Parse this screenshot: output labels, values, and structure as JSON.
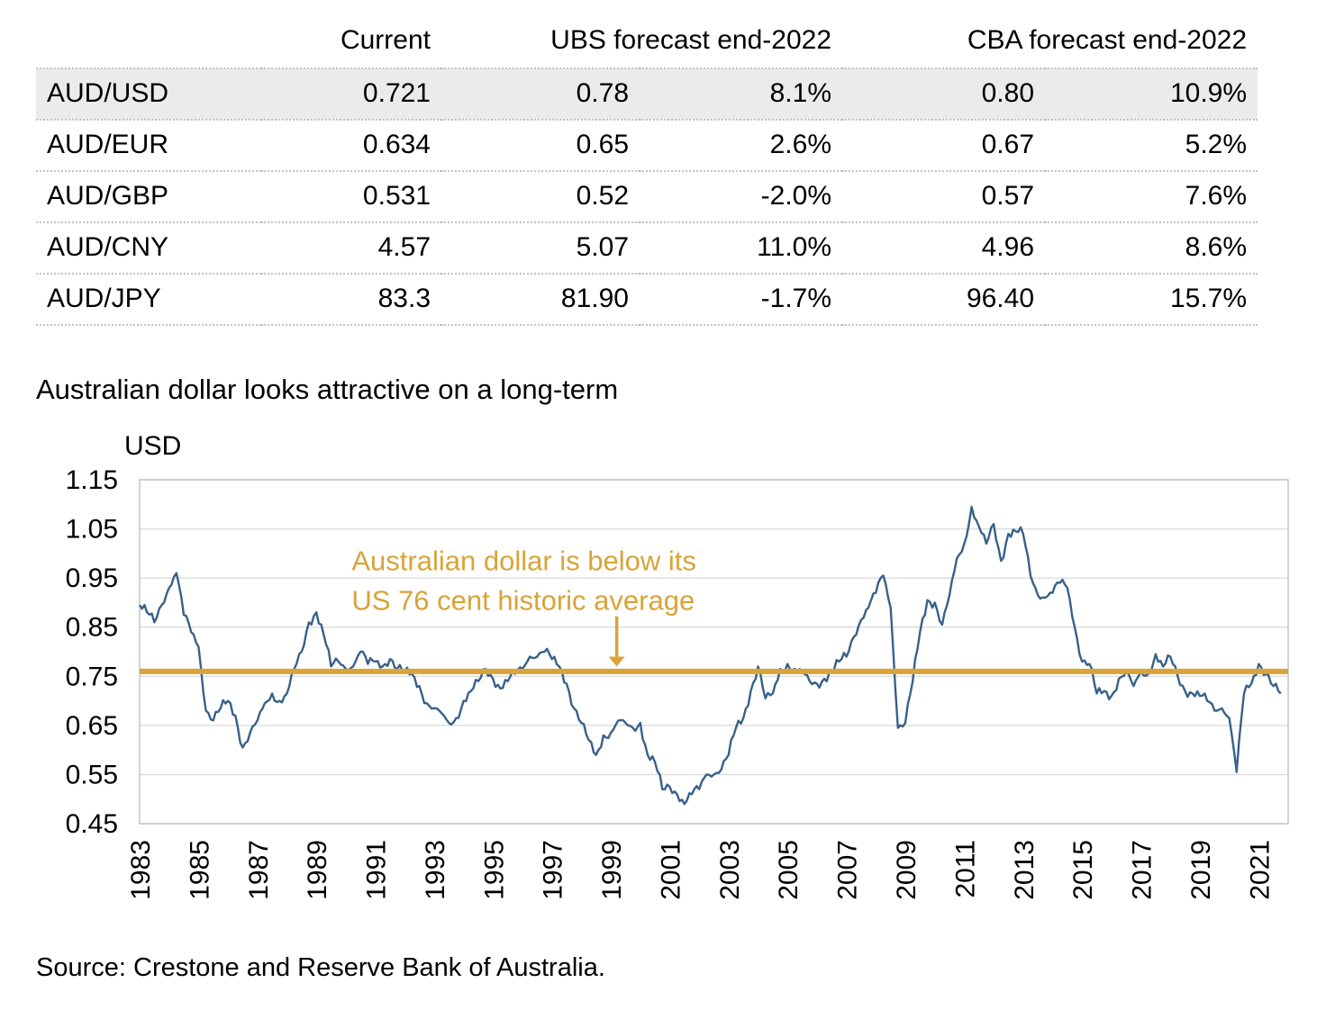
{
  "table": {
    "headers": [
      "",
      "Current",
      "UBS forecast end-2022",
      "CBA forecast end-2022"
    ],
    "rows": [
      {
        "pair": "AUD/USD",
        "current": "0.721",
        "ubs_forecast": "0.78",
        "ubs_change": "8.1%",
        "cba_forecast": "0.80",
        "cba_change": "10.9%",
        "highlight": true
      },
      {
        "pair": "AUD/EUR",
        "current": "0.634",
        "ubs_forecast": "0.65",
        "ubs_change": "2.6%",
        "cba_forecast": "0.67",
        "cba_change": "5.2%",
        "highlight": false
      },
      {
        "pair": "AUD/GBP",
        "current": "0.531",
        "ubs_forecast": "0.52",
        "ubs_change": "-2.0%",
        "cba_forecast": "0.57",
        "cba_change": "7.6%",
        "highlight": false
      },
      {
        "pair": "AUD/CNY",
        "current": "4.57",
        "ubs_forecast": "5.07",
        "ubs_change": "11.0%",
        "cba_forecast": "4.96",
        "cba_change": "8.6%",
        "highlight": false
      },
      {
        "pair": "AUD/JPY",
        "current": "83.3",
        "ubs_forecast": "81.90",
        "ubs_change": "-1.7%",
        "cba_forecast": "96.40",
        "cba_change": "15.7%",
        "highlight": false
      }
    ]
  },
  "section_title": "Australian dollar looks attractive on a long-term",
  "source": "Source: Crestone and Reserve Bank of Australia.",
  "chart_data": {
    "type": "line",
    "title": "Australian dollar looks attractive on a long-term",
    "ylabel": "USD",
    "xlim": [
      1983,
      2022
    ],
    "ylim": [
      0.45,
      1.15
    ],
    "y_ticks": [
      1.15,
      1.05,
      0.95,
      0.85,
      0.75,
      0.65,
      0.55,
      0.45
    ],
    "x_ticks": [
      1983,
      1985,
      1987,
      1989,
      1991,
      1993,
      1995,
      1997,
      1999,
      2001,
      2003,
      2005,
      2007,
      2009,
      2011,
      2013,
      2015,
      2017,
      2019,
      2021
    ],
    "grid": true,
    "grid_color": "#dcdcdc",
    "border_color": "#c8c8c8",
    "series": [
      {
        "name": "AUD/USD",
        "color": "#376189",
        "x_start": 1983,
        "x_step": 0.25,
        "values": [
          0.895,
          0.88,
          0.86,
          0.895,
          0.93,
          0.96,
          0.875,
          0.84,
          0.81,
          0.68,
          0.66,
          0.685,
          0.7,
          0.67,
          0.605,
          0.635,
          0.66,
          0.695,
          0.715,
          0.7,
          0.715,
          0.765,
          0.8,
          0.86,
          0.88,
          0.835,
          0.77,
          0.78,
          0.765,
          0.77,
          0.8,
          0.775,
          0.78,
          0.77,
          0.785,
          0.765,
          0.76,
          0.755,
          0.73,
          0.695,
          0.685,
          0.675,
          0.655,
          0.665,
          0.7,
          0.72,
          0.74,
          0.765,
          0.745,
          0.725,
          0.74,
          0.755,
          0.765,
          0.79,
          0.79,
          0.8,
          0.785,
          0.77,
          0.735,
          0.685,
          0.655,
          0.62,
          0.59,
          0.63,
          0.635,
          0.66,
          0.655,
          0.645,
          0.655,
          0.59,
          0.575,
          0.52,
          0.525,
          0.51,
          0.49,
          0.51,
          0.52,
          0.55,
          0.55,
          0.56,
          0.59,
          0.645,
          0.665,
          0.72,
          0.77,
          0.705,
          0.715,
          0.765,
          0.775,
          0.765,
          0.76,
          0.74,
          0.735,
          0.745,
          0.76,
          0.78,
          0.79,
          0.83,
          0.865,
          0.89,
          0.92,
          0.955,
          0.89,
          0.645,
          0.655,
          0.74,
          0.84,
          0.905,
          0.9,
          0.855,
          0.915,
          0.99,
          1.02,
          1.095,
          1.055,
          1.02,
          1.06,
          0.985,
          1.04,
          1.045,
          1.04,
          0.955,
          0.915,
          0.91,
          0.92,
          0.94,
          0.93,
          0.85,
          0.78,
          0.775,
          0.715,
          0.72,
          0.71,
          0.745,
          0.76,
          0.73,
          0.76,
          0.755,
          0.795,
          0.77,
          0.79,
          0.75,
          0.72,
          0.715,
          0.71,
          0.7,
          0.68,
          0.685,
          0.665,
          0.555,
          0.715,
          0.735,
          0.775,
          0.755,
          0.73,
          0.715
        ]
      }
    ],
    "reference_line": {
      "value": 0.76,
      "color": "#D9A338",
      "width": 6
    },
    "annotation": {
      "lines": [
        "Australian dollar is below its",
        "US 76 cent historic average"
      ],
      "color": "#D9A338",
      "text_x": 1990.2,
      "line_y": [
        0.966,
        0.885
      ],
      "arrow": {
        "x": 1999.2,
        "from_y": 0.872,
        "to_y": 0.79,
        "tip_y": 0.77
      }
    }
  }
}
